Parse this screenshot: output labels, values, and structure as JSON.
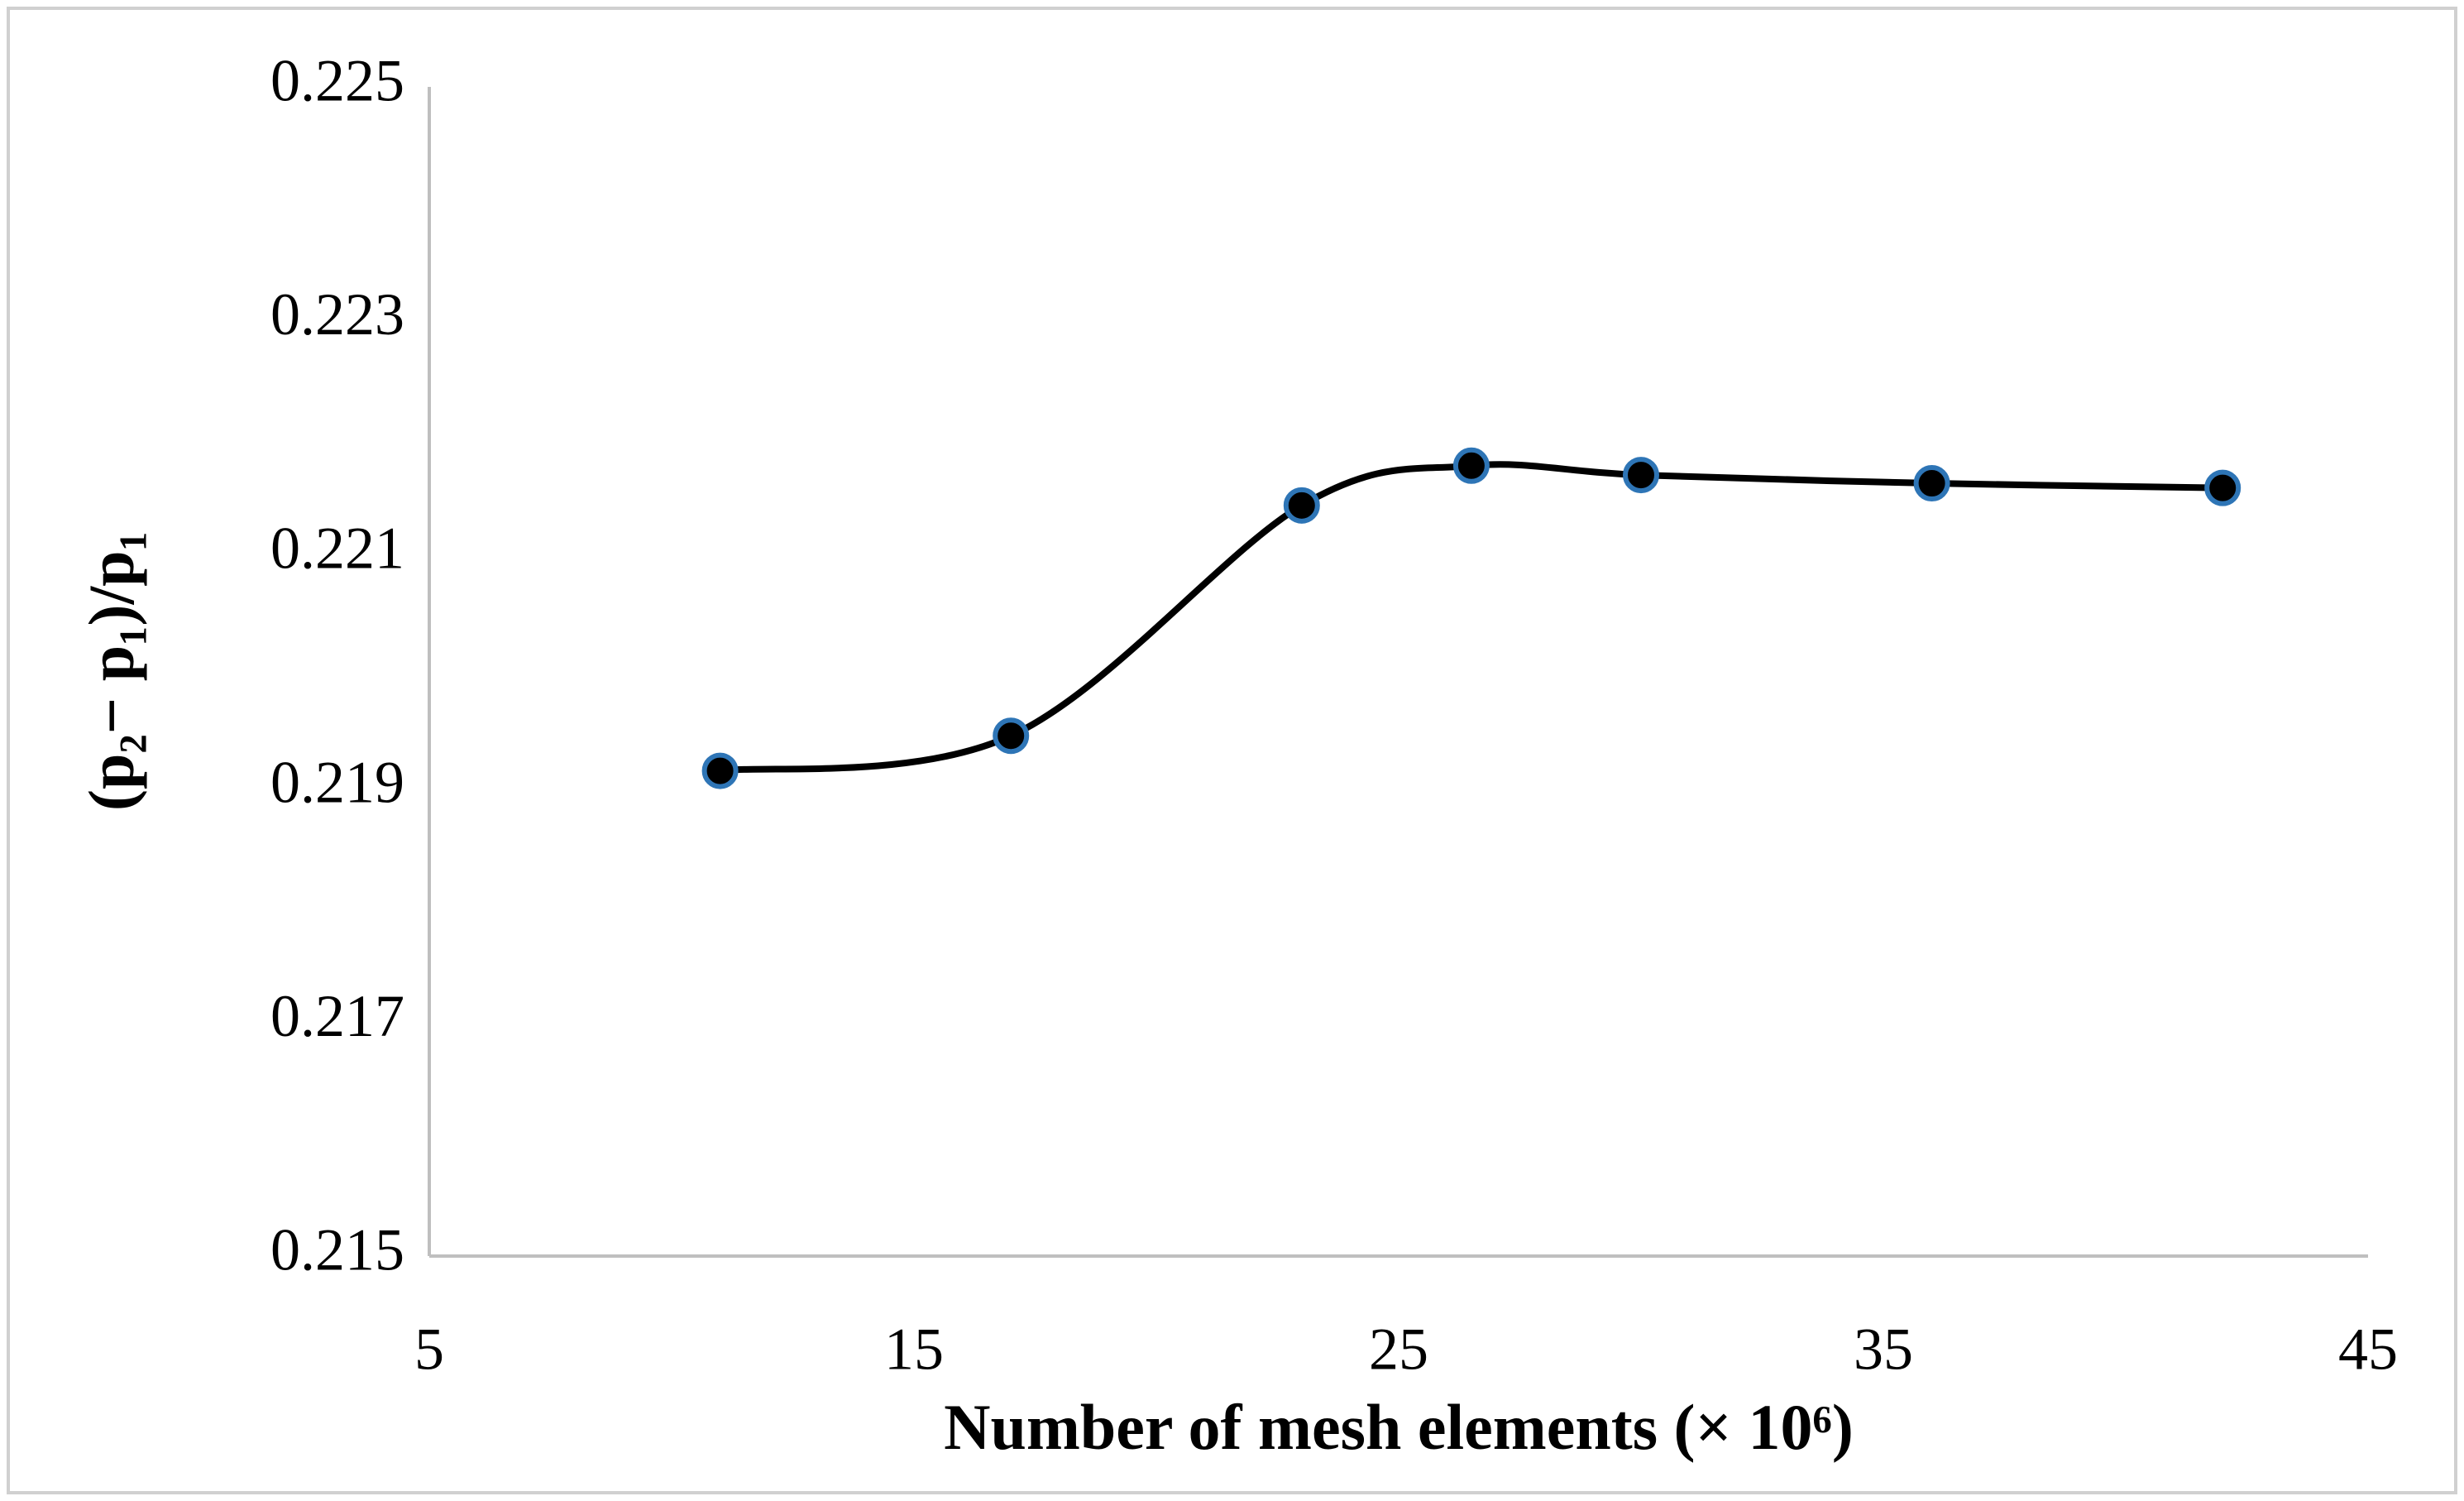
{
  "chart_data": {
    "type": "line",
    "x_label": "Number of mesh elements (× 10⁶)",
    "y_label": "(p₂− p₁)/p₁",
    "x": [
      11,
      17,
      23,
      26.5,
      30,
      36,
      42
    ],
    "series": [
      {
        "color": "#000000",
        "marker_edge": "#2e75b6",
        "values": [
          0.21915,
          0.21945,
          0.22142,
          0.22176,
          0.22168,
          0.22161,
          0.22157
        ]
      }
    ],
    "xlim": [
      5,
      45
    ],
    "xticks": [
      5,
      15,
      25,
      35,
      45
    ],
    "ylim": [
      0.215,
      0.225
    ],
    "yticks": [
      0.215,
      0.217,
      0.219,
      0.221,
      0.223,
      0.225
    ],
    "grid": false,
    "smooth": true
  }
}
